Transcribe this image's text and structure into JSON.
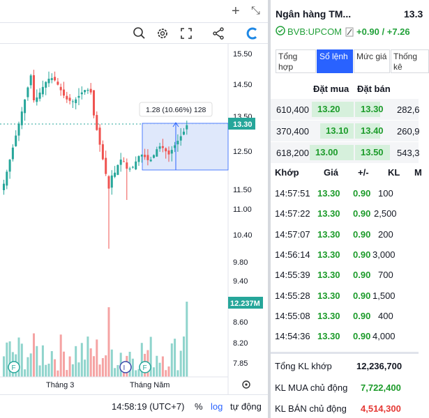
{
  "chart": {
    "price_labels": [
      "15.50",
      "14.50",
      "13.50",
      "12.50",
      "11.50",
      "11.00",
      "10.40",
      "9.80",
      "9.40",
      "8.60",
      "8.20",
      "7.85"
    ],
    "current_price_badge": "13.30",
    "volume_badge": "12.237M",
    "measure_label": "1.28 (10.66%) 128",
    "time_labels": [
      "Tháng 3",
      "Tháng Năm"
    ],
    "event_markers": [
      "F",
      "F",
      "I",
      "F"
    ],
    "colors": {
      "up": "#26a69a",
      "down": "#ef5350",
      "vol_up": "#8fd4cc",
      "vol_down": "#f5a3a3",
      "badge": "#26a69a",
      "measure_box": "#dce6fb"
    }
  },
  "chart_data": {
    "type": "candlestick",
    "ylim": [
      7.85,
      15.5
    ],
    "x_ticks": [
      "Tháng 3",
      "Tháng Năm"
    ],
    "last_price": 13.3,
    "last_volume_label": "12.237M",
    "range_measure": {
      "change": 1.28,
      "percent": "10.66%",
      "bars": 128
    }
  },
  "chart_bottom": {
    "time": "14:58:19 (UTC+7)",
    "percent": "%",
    "log": "log",
    "auto": "tự động"
  },
  "stock": {
    "name": "Ngân hàng TM...",
    "price": "13.3",
    "symbol": "BVB:UPCOM",
    "change": "+0.90 / +7.26"
  },
  "tabs": [
    {
      "label": "Tổng hợp"
    },
    {
      "label": "Sổ lệnh"
    },
    {
      "label": "Mức giá"
    },
    {
      "label": "Thống kê"
    }
  ],
  "orderbook": {
    "bid_header": "Đặt mua",
    "ask_header": "Đặt bán",
    "rows": [
      {
        "bid_vol": "610,400",
        "bid": "13.20",
        "ask": "13.30",
        "ask_vol": "282,6"
      },
      {
        "bid_vol": "370,400",
        "bid": "13.10",
        "ask": "13.40",
        "ask_vol": "260,9"
      },
      {
        "bid_vol": "618,200",
        "bid": "13.00",
        "ask": "13.50",
        "ask_vol": "543,3"
      }
    ]
  },
  "trades": {
    "headers": {
      "time": "Khớp",
      "price": "Giá",
      "change": "+/-",
      "vol": "KL",
      "side": "M"
    },
    "rows": [
      {
        "time": "14:57:51",
        "price": "13.30",
        "change": "0.90",
        "vol": "100"
      },
      {
        "time": "14:57:22",
        "price": "13.30",
        "change": "0.90",
        "vol": "2,500"
      },
      {
        "time": "14:57:07",
        "price": "13.30",
        "change": "0.90",
        "vol": "200"
      },
      {
        "time": "14:56:14",
        "price": "13.30",
        "change": "0.90",
        "vol": "3,000"
      },
      {
        "time": "14:55:39",
        "price": "13.30",
        "change": "0.90",
        "vol": "700"
      },
      {
        "time": "14:55:28",
        "price": "13.30",
        "change": "0.90",
        "vol": "1,500"
      },
      {
        "time": "14:55:08",
        "price": "13.30",
        "change": "0.90",
        "vol": "400"
      },
      {
        "time": "14:54:36",
        "price": "13.30",
        "change": "0.90",
        "vol": "4,000"
      }
    ]
  },
  "summary": {
    "total_label": "Tổng KL khớp",
    "total_value": "12,236,700",
    "buy_label": "KL MUA chủ động",
    "buy_value": "7,722,400",
    "sell_label": "KL BÁN chủ động",
    "sell_value": "4,514,300",
    "colors": {
      "buy": "#1c9b2a",
      "sell": "#e53935"
    }
  },
  "icons": [
    "plus-icon",
    "expand-icon",
    "magnifier-icon",
    "gear-icon",
    "fullscreen-icon",
    "share-icon",
    "refresh-icon",
    "settings-small-icon",
    "checkmark-circle-icon",
    "edit-icon"
  ]
}
